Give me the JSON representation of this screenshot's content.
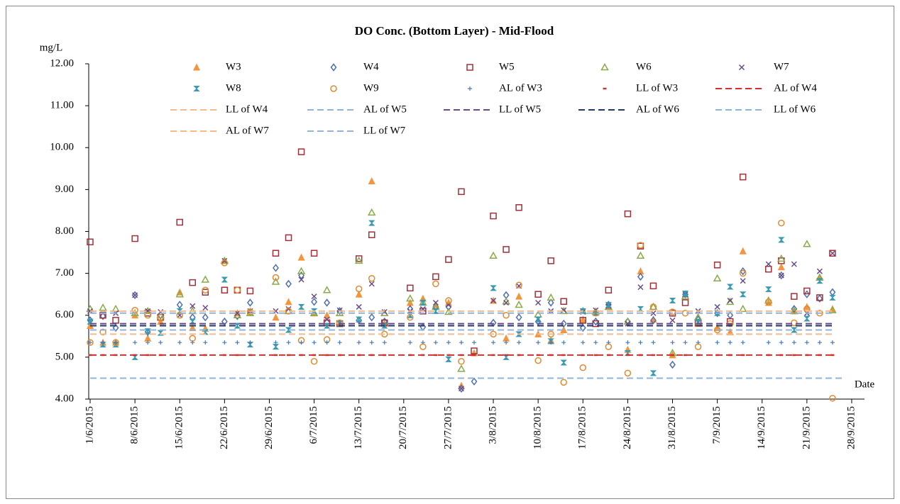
{
  "chart_data": {
    "type": "scatter",
    "title": "DO Conc. (Bottom Layer) - Mid-Flood",
    "y_label": "mg/L",
    "x_label": "Date",
    "xlim": [
      "1/6/2015",
      "30/9/2015"
    ],
    "xticks": [
      "1/6/2015",
      "8/6/2015",
      "15/6/2015",
      "22/6/2015",
      "29/6/2015",
      "6/7/2015",
      "13/7/2015",
      "20/7/2015",
      "27/7/2015",
      "3/8/2015",
      "10/8/2015",
      "17/8/2015",
      "24/8/2015",
      "31/8/2015",
      "7/9/2015",
      "14/9/2015",
      "21/9/2015",
      "28/9/2015"
    ],
    "ylim": [
      4,
      12
    ],
    "yticks": [
      {
        "value": 4,
        "label": "4.00"
      },
      {
        "value": 5,
        "label": "5.00"
      },
      {
        "value": 6,
        "label": "6.00"
      },
      {
        "value": 7,
        "label": "7.00"
      },
      {
        "value": 8,
        "label": "8.00"
      },
      {
        "value": 9,
        "label": "9.00"
      },
      {
        "value": 10,
        "label": "10.00"
      },
      {
        "value": 11,
        "label": "11.00"
      },
      {
        "value": 12,
        "label": "12.00"
      }
    ],
    "x": [
      "1/6/2015",
      "3/6/2015",
      "5/6/2015",
      "8/6/2015",
      "10/6/2015",
      "12/6/2015",
      "15/6/2015",
      "17/6/2015",
      "19/6/2015",
      "22/6/2015",
      "24/6/2015",
      "26/6/2015",
      "30/6/2015",
      "2/7/2015",
      "4/7/2015",
      "6/7/2015",
      "8/7/2015",
      "10/7/2015",
      "13/7/2015",
      "15/7/2015",
      "17/7/2015",
      "21/7/2015",
      "23/7/2015",
      "25/7/2015",
      "27/7/2015",
      "29/7/2015",
      "31/7/2015",
      "3/8/2015",
      "5/8/2015",
      "7/8/2015",
      "10/8/2015",
      "12/8/2015",
      "14/8/2015",
      "17/8/2015",
      "19/8/2015",
      "21/8/2015",
      "24/8/2015",
      "26/8/2015",
      "28/8/2015",
      "31/8/2015",
      "2/9/2015",
      "4/9/2015",
      "7/9/2015",
      "9/9/2015",
      "11/9/2015",
      "15/9/2015",
      "17/9/2015",
      "19/9/2015",
      "21/9/2015",
      "23/9/2015",
      "25/9/2015"
    ],
    "series": [
      {
        "name": "W3",
        "color": "#f4943c",
        "marker": "triangle",
        "values": [
          5.75,
          5.35,
          5.35,
          6.0,
          5.45,
          5.85,
          6.55,
          5.7,
          5.68,
          7.3,
          6.05,
          6.1,
          5.95,
          6.32,
          7.38,
          6.05,
          6.0,
          5.8,
          6.5,
          9.2,
          5.8,
          6.3,
          6.4,
          6.25,
          6.3,
          4.32,
          5.1,
          6.35,
          5.45,
          6.45,
          5.55,
          5.4,
          5.65,
          5.9,
          6.1,
          6.2,
          5.18,
          7.05,
          5.9,
          5.05,
          6.5,
          5.8,
          5.7,
          5.6,
          7.53,
          6.3,
          7.15,
          6.1,
          6.2,
          6.9,
          6.15
        ]
      },
      {
        "name": "W4",
        "color": "#4f6fb0",
        "marker": "diamond",
        "values": [
          5.88,
          5.98,
          5.7,
          6.48,
          5.6,
          6.0,
          6.25,
          5.95,
          5.95,
          5.85,
          5.98,
          6.3,
          7.13,
          6.75,
          6.95,
          6.32,
          6.3,
          6.1,
          5.88,
          5.95,
          5.85,
          6.15,
          5.72,
          6.2,
          6.2,
          4.25,
          4.42,
          5.82,
          6.48,
          5.95,
          5.85,
          6.3,
          5.8,
          5.7,
          5.85,
          6.25,
          5.85,
          6.92,
          5.88,
          4.82,
          6.5,
          5.9,
          6.05,
          6.0,
          7.05,
          null,
          6.95,
          6.15,
          6.5,
          6.4,
          6.55
        ]
      },
      {
        "name": "W5",
        "color": "#a0303a",
        "marker": "square",
        "values": [
          7.75,
          6.0,
          5.88,
          7.83,
          6.05,
          5.95,
          8.22,
          6.78,
          6.55,
          6.6,
          6.6,
          6.58,
          7.48,
          7.85,
          9.9,
          7.48,
          5.82,
          5.8,
          7.35,
          7.92,
          5.82,
          6.65,
          6.1,
          6.92,
          7.33,
          8.95,
          5.15,
          8.37,
          7.57,
          8.57,
          6.5,
          7.3,
          6.33,
          5.88,
          5.8,
          6.6,
          8.42,
          7.65,
          6.7,
          6.05,
          6.3,
          5.82,
          7.2,
          5.85,
          9.3,
          7.1,
          7.3,
          6.45,
          6.58,
          6.42,
          7.48
        ]
      },
      {
        "name": "W6",
        "color": "#8aaa4a",
        "marker": "triangle-open",
        "values": [
          6.15,
          6.18,
          6.15,
          6.05,
          6.1,
          6.0,
          6.5,
          6.1,
          6.85,
          7.3,
          6.0,
          6.05,
          6.8,
          6.1,
          7.05,
          6.05,
          6.6,
          6.05,
          7.3,
          8.45,
          6.05,
          6.4,
          6.3,
          6.2,
          6.08,
          4.72,
          null,
          7.42,
          6.33,
          6.25,
          6.02,
          6.42,
          6.1,
          6.1,
          6.08,
          6.2,
          5.85,
          7.42,
          6.2,
          5.1,
          6.45,
          5.95,
          6.88,
          6.32,
          6.15,
          6.35,
          7.35,
          6.1,
          7.7,
          6.9,
          6.12
        ]
      },
      {
        "name": "W7",
        "color": "#6a4a8a",
        "marker": "x",
        "values": [
          6.1,
          6.05,
          6.05,
          6.48,
          6.1,
          6.08,
          6.0,
          6.22,
          6.18,
          7.3,
          6.05,
          6.1,
          6.1,
          6.15,
          6.85,
          6.45,
          5.9,
          6.12,
          6.2,
          6.75,
          6.08,
          6.1,
          6.15,
          6.3,
          6.25,
          4.25,
          null,
          6.35,
          6.3,
          6.7,
          6.3,
          6.1,
          6.12,
          6.08,
          6.12,
          6.22,
          5.8,
          6.67,
          6.05,
          5.88,
          6.5,
          6.1,
          6.2,
          6.35,
          6.82,
          7.22,
          6.95,
          7.22,
          6.05,
          7.05,
          7.48
        ]
      },
      {
        "name": "W8",
        "color": "#3a9ab0",
        "marker": "hourglass",
        "values": [
          5.85,
          5.3,
          5.3,
          5.0,
          5.62,
          5.58,
          6.1,
          5.85,
          5.6,
          6.85,
          5.75,
          5.3,
          5.25,
          5.65,
          6.2,
          6.1,
          5.75,
          5.8,
          5.9,
          8.2,
          5.75,
          6.0,
          6.3,
          6.1,
          4.95,
          null,
          null,
          6.65,
          5.0,
          5.55,
          5.9,
          5.38,
          4.87,
          6.1,
          6.05,
          6.25,
          5.1,
          6.15,
          4.62,
          6.35,
          6.52,
          5.85,
          6.05,
          6.68,
          6.5,
          6.62,
          7.8,
          5.65,
          5.92,
          6.82,
          6.42
        ]
      },
      {
        "name": "W9",
        "color": "#e08a30",
        "marker": "circle",
        "values": [
          5.35,
          5.6,
          5.35,
          6.12,
          6.0,
          5.95,
          6.0,
          5.45,
          6.6,
          7.25,
          6.6,
          6.08,
          6.9,
          6.1,
          5.4,
          4.9,
          5.42,
          5.82,
          6.63,
          6.88,
          5.55,
          5.95,
          5.25,
          6.75,
          6.35,
          4.9,
          null,
          5.55,
          6.0,
          6.72,
          4.92,
          5.55,
          4.4,
          4.75,
          6.05,
          5.25,
          4.62,
          7.67,
          6.2,
          6.08,
          6.05,
          5.25,
          5.65,
          5.8,
          7.0,
          6.32,
          8.2,
          5.82,
          6.15,
          6.05,
          4.02
        ]
      },
      {
        "name": "AL of W3",
        "color": "#4a7ab0",
        "marker": "plus",
        "values": [
          5.35,
          5.35,
          5.35,
          5.35,
          5.35,
          5.35,
          5.35,
          5.35,
          5.35,
          5.35,
          5.35,
          5.35,
          5.35,
          5.35,
          5.35,
          5.35,
          5.35,
          5.35,
          5.35,
          5.35,
          5.35,
          5.35,
          5.35,
          5.35,
          5.35,
          5.35,
          5.35,
          5.35,
          5.35,
          5.35,
          5.35,
          5.35,
          5.35,
          5.35,
          5.35,
          5.35,
          5.35,
          5.35,
          5.35,
          5.35,
          5.35,
          5.35,
          5.35,
          5.35,
          5.35,
          5.35,
          5.35,
          5.35,
          5.35,
          5.35,
          5.35
        ]
      },
      {
        "name": "LL of W3",
        "color": "#c0392b",
        "marker": "dash",
        "values": [
          5.05,
          5.05,
          5.05,
          5.05,
          5.05,
          5.05,
          5.05,
          5.05,
          5.05,
          5.05,
          5.05,
          5.05,
          5.05,
          5.05,
          5.05,
          5.05,
          5.05,
          5.05,
          5.05,
          5.05,
          5.05,
          5.05,
          5.05,
          5.05,
          5.05,
          5.05,
          5.05,
          5.05,
          5.05,
          5.05,
          5.05,
          5.05,
          5.05,
          5.05,
          5.05,
          5.05,
          5.05,
          5.05,
          5.05,
          5.05,
          5.05,
          5.05,
          5.05,
          5.05,
          5.05,
          5.05,
          5.05,
          5.05,
          5.05,
          5.05,
          5.05
        ]
      },
      {
        "name": "AL of W4",
        "color": "#d03030",
        "style": "dashed",
        "x": [
          "1/6/2015",
          "25/9/2015"
        ],
        "values": [
          5.05,
          5.05
        ]
      },
      {
        "name": "LL of W4",
        "color": "#f5b98a",
        "style": "dashed",
        "x": [
          "1/6/2015",
          "25/9/2015"
        ],
        "values": [
          5.55,
          5.55
        ]
      },
      {
        "name": "AL of W5",
        "color": "#8fb4dc",
        "style": "dashed",
        "x": [
          "1/6/2015",
          "25/9/2015"
        ],
        "values": [
          5.65,
          5.65
        ]
      },
      {
        "name": "LL of W5",
        "color": "#6a4a8a",
        "style": "dashed",
        "x": [
          "1/6/2015",
          "25/9/2015"
        ],
        "values": [
          5.8,
          5.8
        ]
      },
      {
        "name": "AL of W6",
        "color": "#1f3a6a",
        "style": "dashed",
        "x": [
          "1/6/2015",
          "25/9/2015"
        ],
        "values": [
          5.75,
          5.75
        ]
      },
      {
        "name": "LL of W6",
        "color": "#8fb4dc",
        "style": "dashed",
        "x": [
          "1/6/2015",
          "27/9/2015"
        ],
        "values": [
          4.5,
          4.5
        ]
      },
      {
        "name": "AL of W7",
        "color": "#f5b98a",
        "style": "dashed",
        "x": [
          "1/6/2015",
          "25/9/2015"
        ],
        "values": [
          6.1,
          6.1
        ]
      },
      {
        "name": "LL of W7",
        "color": "#8fb4dc",
        "style": "dashed",
        "x": [
          "1/6/2015",
          "25/9/2015"
        ],
        "values": [
          6.05,
          6.05
        ]
      }
    ]
  }
}
